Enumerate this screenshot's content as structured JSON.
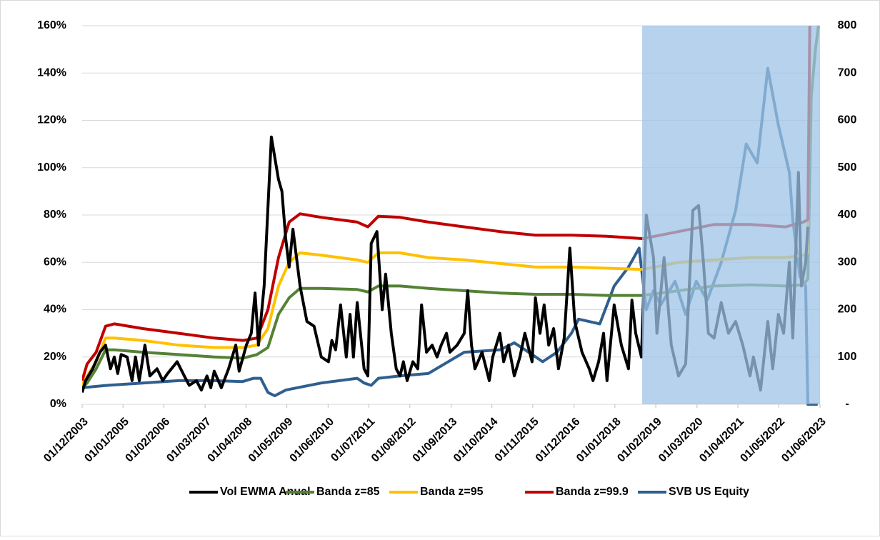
{
  "chart_data": {
    "type": "line",
    "xlim": [
      2003.92,
      2023.42
    ],
    "xticks": [
      {
        "value": 2003.92,
        "label": "01/12/2003"
      },
      {
        "value": 2005.0,
        "label": "01/01/2005"
      },
      {
        "value": 2006.08,
        "label": "01/02/2006"
      },
      {
        "value": 2007.17,
        "label": "01/03/2007"
      },
      {
        "value": 2008.25,
        "label": "01/04/2008"
      },
      {
        "value": 2009.33,
        "label": "01/05/2009"
      },
      {
        "value": 2010.42,
        "label": "01/06/2010"
      },
      {
        "value": 2011.5,
        "label": "01/07/2011"
      },
      {
        "value": 2012.58,
        "label": "01/08/2012"
      },
      {
        "value": 2013.67,
        "label": "01/09/2013"
      },
      {
        "value": 2014.75,
        "label": "01/10/2014"
      },
      {
        "value": 2015.83,
        "label": "01/11/2015"
      },
      {
        "value": 2016.92,
        "label": "01/12/2016"
      },
      {
        "value": 2018.0,
        "label": "01/01/2018"
      },
      {
        "value": 2019.08,
        "label": "01/02/2019"
      },
      {
        "value": 2020.17,
        "label": "01/03/2020"
      },
      {
        "value": 2021.25,
        "label": "01/04/2021"
      },
      {
        "value": 2022.33,
        "label": "01/05/2022"
      },
      {
        "value": 2023.42,
        "label": "01/06/2023"
      }
    ],
    "ylim": [
      0,
      160
    ],
    "yticks": [
      {
        "value": 0,
        "label": "0%"
      },
      {
        "value": 20,
        "label": "20%"
      },
      {
        "value": 40,
        "label": "40%"
      },
      {
        "value": 60,
        "label": "60%"
      },
      {
        "value": 80,
        "label": "80%"
      },
      {
        "value": 100,
        "label": "100%"
      },
      {
        "value": 120,
        "label": "120%"
      },
      {
        "value": 140,
        "label": "140%"
      },
      {
        "value": 160,
        "label": "160%"
      }
    ],
    "y2lim": [
      0,
      800
    ],
    "y2ticks": [
      {
        "value": 0,
        "label": "-"
      },
      100,
      200,
      300,
      400,
      500,
      600,
      700,
      800
    ],
    "grid": true,
    "legend": "bottom",
    "highlight": {
      "x": [
        2018.72,
        2023.42
      ],
      "color": "#9dc3e6"
    },
    "series": [
      {
        "name": "Vol EWMA Anual",
        "color": "#000000",
        "x": [
          2003.92,
          2004.01,
          2004.2,
          2004.39,
          2004.54,
          2004.67,
          2004.77,
          2004.86,
          2004.95,
          2005.11,
          2005.24,
          2005.33,
          2005.43,
          2005.58,
          2005.71,
          2005.9,
          2006.05,
          2006.18,
          2006.43,
          2006.62,
          2006.75,
          2006.94,
          2007.07,
          2007.22,
          2007.32,
          2007.41,
          2007.6,
          2007.79,
          2007.98,
          2008.07,
          2008.26,
          2008.39,
          2008.49,
          2008.58,
          2008.73,
          2008.92,
          2009.11,
          2009.2,
          2009.3,
          2009.39,
          2009.49,
          2009.68,
          2009.86,
          2010.05,
          2010.24,
          2010.43,
          2010.52,
          2010.62,
          2010.75,
          2010.9,
          2011.0,
          2011.09,
          2011.19,
          2011.37,
          2011.47,
          2011.56,
          2011.71,
          2011.85,
          2011.94,
          2012.09,
          2012.22,
          2012.32,
          2012.41,
          2012.51,
          2012.66,
          2012.79,
          2012.89,
          2013.02,
          2013.17,
          2013.3,
          2013.41,
          2013.55,
          2013.64,
          2013.83,
          2014.02,
          2014.11,
          2014.21,
          2014.3,
          2014.49,
          2014.68,
          2014.77,
          2014.96,
          2015.06,
          2015.19,
          2015.34,
          2015.49,
          2015.62,
          2015.81,
          2015.9,
          2016.02,
          2016.13,
          2016.25,
          2016.38,
          2016.51,
          2016.66,
          2016.81,
          2016.94,
          2017.13,
          2017.32,
          2017.42,
          2017.57,
          2017.7,
          2017.79,
          2017.98,
          2018.17,
          2018.36,
          2018.45,
          2018.55,
          2018.7,
          2018.83,
          2019.02,
          2019.11,
          2019.3,
          2019.49,
          2019.68,
          2019.87,
          2020.06,
          2020.21,
          2020.34,
          2020.47,
          2020.62,
          2020.81,
          2021.0,
          2021.19,
          2021.38,
          2021.57,
          2021.66,
          2021.85,
          2022.04,
          2022.17,
          2022.32,
          2022.46,
          2022.61,
          2022.7,
          2022.85,
          2022.93,
          2023.04,
          2023.1
        ],
        "values": [
          5,
          10,
          15,
          22,
          25,
          15,
          20,
          13,
          21,
          20,
          10,
          20,
          10,
          25,
          12,
          15,
          10,
          13,
          18,
          12,
          8,
          10,
          6,
          12,
          7,
          14,
          7,
          15,
          25,
          14,
          25,
          30,
          47,
          25,
          50,
          113,
          95,
          90,
          70,
          58,
          74,
          50,
          35,
          33,
          20,
          18,
          27,
          23,
          42,
          20,
          38,
          20,
          43,
          15,
          12,
          68,
          73,
          40,
          55,
          30,
          15,
          12,
          18,
          10,
          18,
          15,
          42,
          22,
          25,
          20,
          25,
          30,
          22,
          25,
          30,
          48,
          25,
          15,
          22,
          10,
          20,
          30,
          18,
          25,
          12,
          20,
          30,
          18,
          45,
          30,
          42,
          25,
          32,
          15,
          28,
          66,
          35,
          22,
          15,
          10,
          18,
          30,
          10,
          42,
          25,
          15,
          44,
          30,
          20,
          80,
          62,
          30,
          62,
          25,
          12,
          17,
          82,
          84,
          60,
          30,
          28,
          43,
          30,
          35,
          25,
          12,
          20,
          6,
          35,
          15,
          38,
          30,
          60,
          28,
          98,
          50,
          60,
          75
        ]
      },
      {
        "name": "Banda z=85",
        "color": "#548235",
        "x": [
          2003.92,
          2004.05,
          2004.29,
          2004.54,
          2004.77,
          2005.52,
          2006.47,
          2007.41,
          2008.17,
          2008.54,
          2008.83,
          2009.11,
          2009.39,
          2009.68,
          2010.24,
          2011.19,
          2011.47,
          2011.75,
          2012.32,
          2013.07,
          2014.02,
          2014.96,
          2015.9,
          2016.85,
          2017.79,
          2018.74,
          2019.68,
          2020.62,
          2021.57,
          2022.51,
          2022.98,
          2023.1,
          2023.19,
          2023.3,
          2023.38
        ],
        "values": [
          7,
          9,
          15,
          23,
          23,
          22,
          21,
          20,
          19.5,
          21,
          24,
          38,
          45,
          49,
          49,
          48.5,
          47.5,
          50,
          50,
          49,
          48,
          47,
          46.5,
          46.5,
          46,
          46,
          48,
          50,
          50.5,
          50,
          50.5,
          53,
          130,
          150,
          160
        ]
      },
      {
        "name": "Banda z=95",
        "color": "#ffc000",
        "x": [
          2003.92,
          2004.05,
          2004.29,
          2004.54,
          2004.77,
          2005.52,
          2006.47,
          2007.41,
          2008.17,
          2008.54,
          2008.83,
          2009.11,
          2009.39,
          2009.68,
          2010.24,
          2011.19,
          2011.47,
          2011.75,
          2012.32,
          2013.07,
          2014.02,
          2014.96,
          2015.9,
          2016.85,
          2017.79,
          2018.74,
          2019.68,
          2020.62,
          2021.57,
          2022.51,
          2022.98,
          2023.1,
          2023.15
        ],
        "values": [
          8,
          12,
          18,
          28,
          28,
          27,
          25,
          24,
          24,
          25,
          32,
          50,
          60,
          64,
          63,
          61,
          60,
          64,
          64,
          62,
          61,
          59.5,
          58,
          58,
          57.5,
          57,
          60,
          61,
          62,
          62,
          63,
          64,
          160
        ]
      },
      {
        "name": "Banda z=99.9",
        "color": "#c00000",
        "x": [
          2003.92,
          2004.05,
          2004.29,
          2004.54,
          2004.77,
          2005.52,
          2006.47,
          2007.41,
          2008.17,
          2008.54,
          2008.83,
          2009.11,
          2009.39,
          2009.68,
          2010.24,
          2011.19,
          2011.47,
          2011.75,
          2012.32,
          2013.07,
          2014.02,
          2014.96,
          2015.9,
          2016.85,
          2017.79,
          2018.74,
          2019.68,
          2020.62,
          2021.57,
          2022.51,
          2022.98,
          2023.1,
          2023.15
        ],
        "values": [
          10,
          17,
          22,
          33,
          34,
          32,
          30,
          28,
          27,
          28,
          40,
          62,
          77,
          80.5,
          79,
          77,
          75,
          79.5,
          79,
          77,
          75,
          73,
          71.5,
          71.5,
          71,
          70,
          73,
          76,
          76,
          75,
          77,
          78,
          160
        ]
      },
      {
        "name": "SVB US Equity",
        "color": "#2f5f8f",
        "axis": "y2",
        "x": [
          2003.92,
          2004.58,
          2005.52,
          2006.47,
          2007.41,
          2008.16,
          2008.45,
          2008.64,
          2008.83,
          2009.01,
          2009.3,
          2010.24,
          2011.19,
          2011.37,
          2011.56,
          2011.75,
          2012.32,
          2013.07,
          2014.02,
          2014.96,
          2015.34,
          2015.72,
          2016.09,
          2016.47,
          2016.85,
          2017.04,
          2017.6,
          2017.98,
          2018.36,
          2018.64,
          2018.83,
          2019.02,
          2019.21,
          2019.59,
          2019.87,
          2020.15,
          2020.44,
          2020.81,
          2021.19,
          2021.47,
          2021.76,
          2022.04,
          2022.32,
          2022.61,
          2022.7,
          2022.89,
          2023.04,
          2023.1,
          2023.36
        ],
        "values": [
          35,
          40,
          45,
          50,
          50,
          48,
          55,
          55,
          25,
          18,
          30,
          45,
          55,
          45,
          40,
          55,
          60,
          65,
          110,
          115,
          130,
          110,
          90,
          110,
          150,
          180,
          170,
          250,
          290,
          330,
          200,
          240,
          210,
          260,
          190,
          260,
          220,
          300,
          410,
          550,
          510,
          710,
          590,
          490,
          390,
          270,
          250,
          0,
          0
        ]
      }
    ]
  }
}
